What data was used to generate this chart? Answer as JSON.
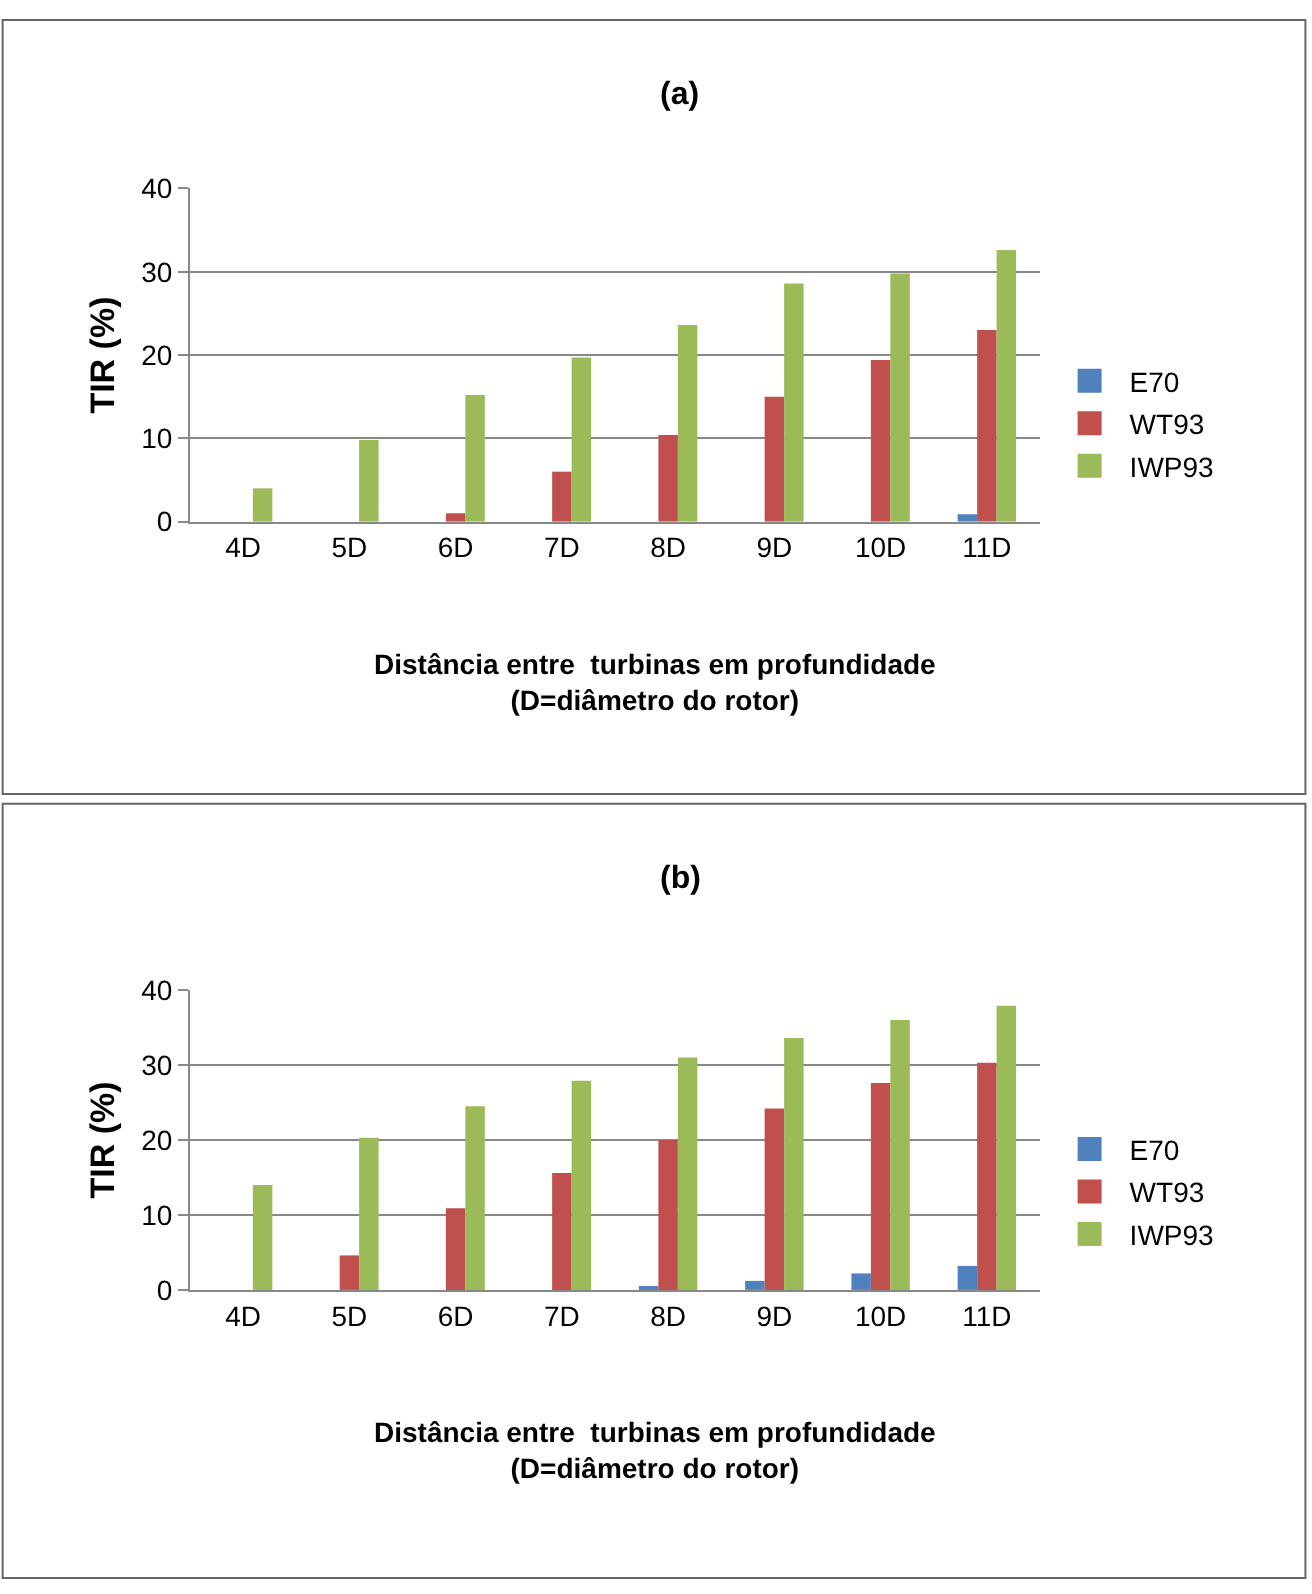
{
  "chart_data": [
    {
      "type": "bar",
      "title": "(a)",
      "xlabel": "Distância entre  turbinas em profundidade (D=diâmetro do rotor)",
      "ylabel": "TIR (%)",
      "categories": [
        "4D",
        "5D",
        "6D",
        "7D",
        "8D",
        "9D",
        "10D",
        "11D"
      ],
      "series": [
        {
          "name": "E70",
          "color": "#4f81bd",
          "values": [
            0,
            0,
            0,
            0,
            0,
            0,
            0,
            0.9
          ]
        },
        {
          "name": "WT93",
          "color": "#c0504d",
          "values": [
            0,
            0,
            1,
            6,
            10.4,
            15,
            19.4,
            23
          ]
        },
        {
          "name": "IWP93",
          "color": "#9bbb59",
          "values": [
            4,
            9.8,
            15.2,
            19.7,
            23.6,
            28.6,
            29.8,
            32.6
          ]
        }
      ],
      "ylim": [
        0,
        40
      ],
      "yticks": [
        0,
        10,
        20,
        30,
        40
      ],
      "grid": "y",
      "legend": "right"
    },
    {
      "type": "bar",
      "title": "(b)",
      "xlabel": "Distância entre  turbinas em profundidade (D=diâmetro do rotor)",
      "ylabel": "TIR (%)",
      "categories": [
        "4D",
        "5D",
        "6D",
        "7D",
        "8D",
        "9D",
        "10D",
        "11D"
      ],
      "series": [
        {
          "name": "E70",
          "color": "#4f81bd",
          "values": [
            0,
            0,
            0,
            0,
            0.3,
            1.2,
            2.2,
            3.2
          ]
        },
        {
          "name": "WT93",
          "color": "#c0504d",
          "values": [
            0,
            4.6,
            10.9,
            15.6,
            20,
            24.2,
            27.6,
            30.3
          ]
        },
        {
          "name": "IWP93",
          "color": "#9bbb59",
          "values": [
            14,
            20.3,
            24.5,
            27.9,
            31,
            33.6,
            36,
            37.9
          ]
        }
      ],
      "ylim": [
        0,
        40
      ],
      "yticks": [
        0,
        10,
        20,
        30,
        40
      ],
      "grid": "y",
      "legend": "right"
    }
  ]
}
